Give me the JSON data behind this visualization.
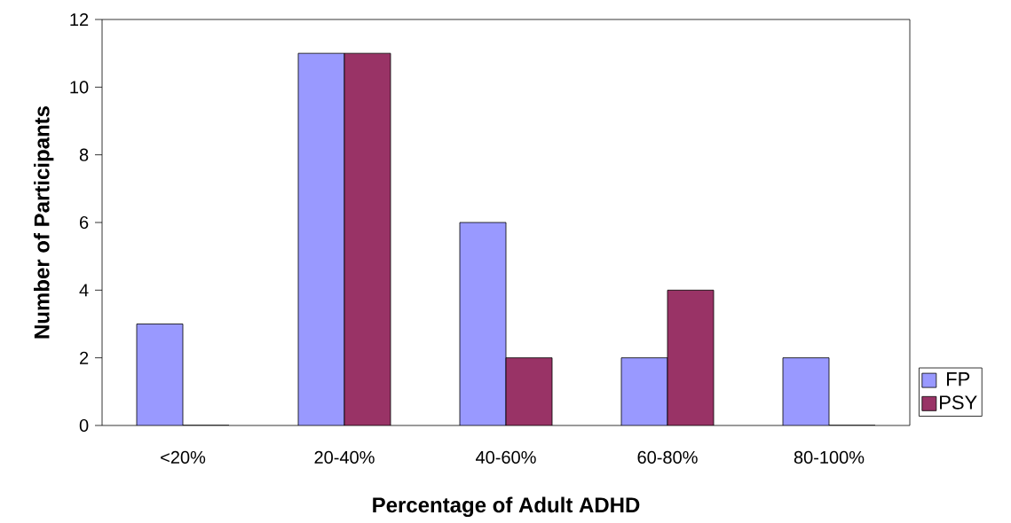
{
  "chart_data": {
    "type": "bar",
    "xlabel": "Percentage of Adult ADHD",
    "ylabel": "Number of Participants",
    "categories": [
      "<20%",
      "20-40%",
      "40-60%",
      "60-80%",
      "80-100%"
    ],
    "series": [
      {
        "name": "FP",
        "color": "#9999ff",
        "values": [
          3,
          11,
          6,
          2,
          2
        ]
      },
      {
        "name": "PSY",
        "color": "#993366",
        "values": [
          0,
          11,
          2,
          4,
          0
        ]
      }
    ],
    "ylim": [
      0,
      12
    ],
    "yticks": [
      0,
      2,
      4,
      6,
      8,
      10,
      12
    ],
    "grid": false,
    "legend": "right"
  }
}
